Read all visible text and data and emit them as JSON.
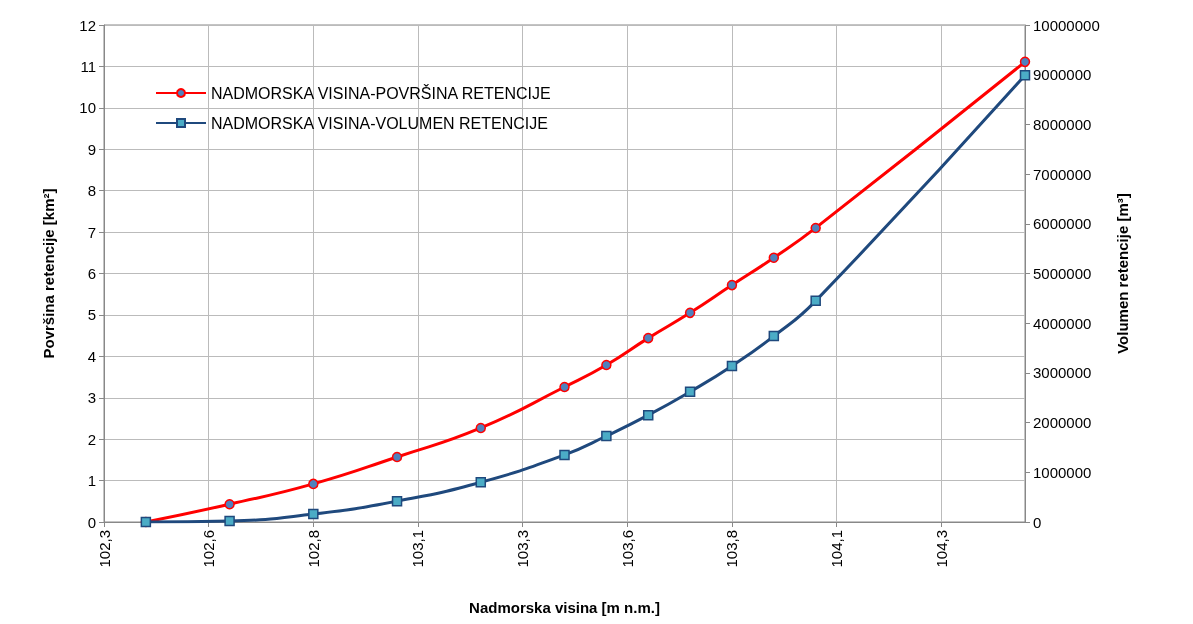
{
  "chart_data": {
    "type": "line",
    "xlabel": "Nadmorska visina [m n.m.]",
    "ylabel": "Površina retencije [km²]",
    "y2label": "Volumen retencije [m³]",
    "x": [
      102.4,
      102.6,
      102.8,
      103.0,
      103.2,
      103.4,
      103.5,
      103.6,
      103.7,
      103.8,
      103.9,
      104.0,
      104.5
    ],
    "series": [
      {
        "name": "NADMORSKA VISINA-POVRŠINA RETENCIJE",
        "color": "#ff0000",
        "marker": "circle",
        "values": [
          0,
          0.43,
          0.92,
          1.57,
          2.27,
          3.26,
          3.79,
          4.44,
          5.05,
          5.72,
          6.38,
          7.1,
          11.11
        ]
      },
      {
        "name": "NADMORSKA VISINA-VOLUMEN RETENCIJE",
        "color": "#1f497d",
        "marker": "square",
        "axis": "y2",
        "values": [
          0,
          20000,
          160000,
          420000,
          800000,
          1350000,
          1730000,
          2150000,
          2620000,
          3140000,
          3740000,
          4450000,
          8990000
        ]
      }
    ],
    "xlim": [
      102.3,
      104.5
    ],
    "xticks": [
      {
        "value": 102.3,
        "label": "102,3"
      },
      {
        "value": 102.55,
        "label": "102,6"
      },
      {
        "value": 102.8,
        "label": "102,8"
      },
      {
        "value": 103.05,
        "label": "103,1"
      },
      {
        "value": 103.3,
        "label": "103,3"
      },
      {
        "value": 103.55,
        "label": "103,6"
      },
      {
        "value": 103.8,
        "label": "103,8"
      },
      {
        "value": 104.05,
        "label": "104,1"
      },
      {
        "value": 104.3,
        "label": "104,3"
      }
    ],
    "ylim": [
      0,
      12
    ],
    "yticks": [
      0,
      1,
      2,
      3,
      4,
      5,
      6,
      7,
      8,
      9,
      10,
      11,
      12
    ],
    "y2lim": [
      0,
      10000000
    ],
    "y2ticks": [
      0,
      1000000,
      2000000,
      3000000,
      4000000,
      5000000,
      6000000,
      7000000,
      8000000,
      9000000,
      10000000
    ],
    "grid": true,
    "legend": "top left"
  }
}
